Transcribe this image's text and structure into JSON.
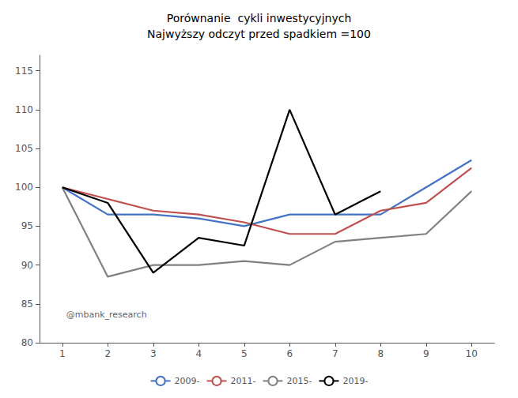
{
  "chart_data": {
    "type": "line",
    "title": "Porównanie  cykli inwestycyjnych\nNajwyższy odczyt przed spadkiem =100",
    "x": [
      1,
      2,
      3,
      4,
      5,
      6,
      7,
      8,
      9,
      10
    ],
    "series": [
      {
        "name": "2009-",
        "color": "#4472C4",
        "values": [
          100,
          96.5,
          96.5,
          96,
          95,
          96.5,
          96.5,
          96.5,
          100,
          103.5
        ]
      },
      {
        "name": "2011-",
        "color": "#C0504D",
        "values": [
          100,
          98.5,
          97,
          96.5,
          95.5,
          94,
          94,
          97,
          98,
          102.5
        ]
      },
      {
        "name": "2015-",
        "color": "#808080",
        "values": [
          100,
          88.5,
          90,
          90,
          90.5,
          90,
          93,
          93.5,
          94,
          99.5
        ]
      },
      {
        "name": "2019-",
        "color": "#000000",
        "values": [
          100,
          98,
          89,
          93.5,
          92.5,
          110,
          96.5,
          99.5,
          null,
          null
        ]
      }
    ],
    "xlim": [
      0.5,
      10.5
    ],
    "xticks": [
      1,
      2,
      3,
      4,
      5,
      6,
      7,
      8,
      9,
      10
    ],
    "ylim": [
      80,
      117
    ],
    "yticks": [
      80,
      85,
      90,
      95,
      100,
      105,
      110,
      115
    ],
    "grid": false,
    "legend": "bottom",
    "annotations": [
      {
        "text": "@mbank_research",
        "x": 1.0,
        "y": 82.5
      }
    ]
  }
}
